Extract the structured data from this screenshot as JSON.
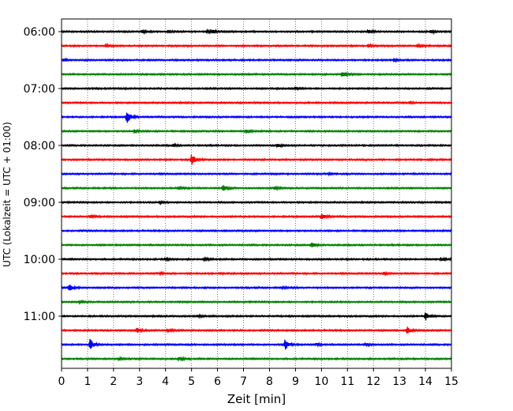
{
  "chart_data": {
    "type": "line",
    "title": "",
    "xlabel": "Zeit  [min]",
    "ylabel": "UTC (Lokalzeit = UTC + 01:00)",
    "xlim": [
      0,
      15
    ],
    "x_ticks": [
      0,
      1,
      2,
      3,
      4,
      5,
      6,
      7,
      8,
      9,
      10,
      11,
      12,
      13,
      14,
      15
    ],
    "y_tick_labels": [
      "06:00",
      "07:00",
      "08:00",
      "09:00",
      "10:00",
      "11:00"
    ],
    "trace_interval_min": 15,
    "start_time": "06:00",
    "grid": "vertical dotted at each minute",
    "color_cycle": [
      "#000000",
      "#ff0000",
      "#0000ff",
      "#008000"
    ],
    "traces": [
      {
        "time": "06:00",
        "color": "#000000",
        "events": [
          [
            3.1,
            0.15
          ],
          [
            4.1,
            0.15
          ],
          [
            5.6,
            0.15
          ],
          [
            5.8,
            0.2
          ],
          [
            11.8,
            0.25
          ],
          [
            14.2,
            0.2
          ]
        ]
      },
      {
        "time": "06:15",
        "color": "#ff0000",
        "events": [
          [
            1.7,
            0.15
          ],
          [
            11.8,
            0.15
          ],
          [
            13.7,
            0.15
          ]
        ]
      },
      {
        "time": "06:30",
        "color": "#0000ff",
        "events": [
          [
            0.1,
            0.15
          ],
          [
            12.8,
            0.15
          ]
        ]
      },
      {
        "time": "06:45",
        "color": "#008000",
        "events": [
          [
            10.8,
            0.4
          ]
        ]
      },
      {
        "time": "07:00",
        "color": "#000000",
        "events": [
          [
            9.0,
            0.15
          ]
        ]
      },
      {
        "time": "07:15",
        "color": "#ff0000",
        "events": [
          [
            13.4,
            0.1
          ]
        ]
      },
      {
        "time": "07:30",
        "color": "#0000ff",
        "events": [
          [
            2.5,
            0.9
          ]
        ]
      },
      {
        "time": "07:45",
        "color": "#008000",
        "events": [
          [
            2.8,
            0.2
          ],
          [
            7.1,
            0.2
          ]
        ]
      },
      {
        "time": "08:00",
        "color": "#000000",
        "events": [
          [
            4.3,
            0.15
          ],
          [
            8.3,
            0.2
          ]
        ]
      },
      {
        "time": "08:15",
        "color": "#ff0000",
        "events": [
          [
            5.0,
            0.7
          ]
        ]
      },
      {
        "time": "08:30",
        "color": "#0000ff",
        "events": [
          [
            10.3,
            0.1
          ]
        ]
      },
      {
        "time": "08:45",
        "color": "#008000",
        "events": [
          [
            4.5,
            0.2
          ],
          [
            6.2,
            0.45
          ],
          [
            8.2,
            0.2
          ]
        ]
      },
      {
        "time": "09:00",
        "color": "#000000",
        "events": [
          [
            3.8,
            0.1
          ]
        ]
      },
      {
        "time": "09:15",
        "color": "#ff0000",
        "events": [
          [
            1.1,
            0.2
          ],
          [
            10.0,
            0.5
          ]
        ]
      },
      {
        "time": "09:30",
        "color": "#0000ff",
        "events": []
      },
      {
        "time": "09:45",
        "color": "#008000",
        "events": [
          [
            9.6,
            0.35
          ]
        ]
      },
      {
        "time": "10:00",
        "color": "#000000",
        "events": [
          [
            4.0,
            0.15
          ],
          [
            5.5,
            0.15
          ],
          [
            14.6,
            0.2
          ],
          [
            15.0,
            0.25
          ]
        ]
      },
      {
        "time": "10:15",
        "color": "#ff0000",
        "events": [
          [
            3.8,
            0.1
          ],
          [
            12.4,
            0.15
          ]
        ]
      },
      {
        "time": "10:30",
        "color": "#0000ff",
        "events": [
          [
            0.3,
            0.4
          ],
          [
            8.5,
            0.1
          ]
        ]
      },
      {
        "time": "10:45",
        "color": "#008000",
        "events": [
          [
            0.7,
            0.15
          ]
        ]
      },
      {
        "time": "11:00",
        "color": "#000000",
        "events": [
          [
            5.3,
            0.1
          ],
          [
            14.0,
            0.55
          ]
        ]
      },
      {
        "time": "11:15",
        "color": "#ff0000",
        "events": [
          [
            2.9,
            0.3
          ],
          [
            4.1,
            0.2
          ],
          [
            13.3,
            0.45
          ]
        ]
      },
      {
        "time": "11:30",
        "color": "#0000ff",
        "events": [
          [
            1.1,
            0.75
          ],
          [
            8.6,
            0.65
          ],
          [
            9.8,
            0.15
          ],
          [
            11.7,
            0.15
          ]
        ]
      },
      {
        "time": "11:45",
        "color": "#008000",
        "events": [
          [
            2.2,
            0.15
          ],
          [
            4.5,
            0.2
          ]
        ]
      }
    ]
  }
}
